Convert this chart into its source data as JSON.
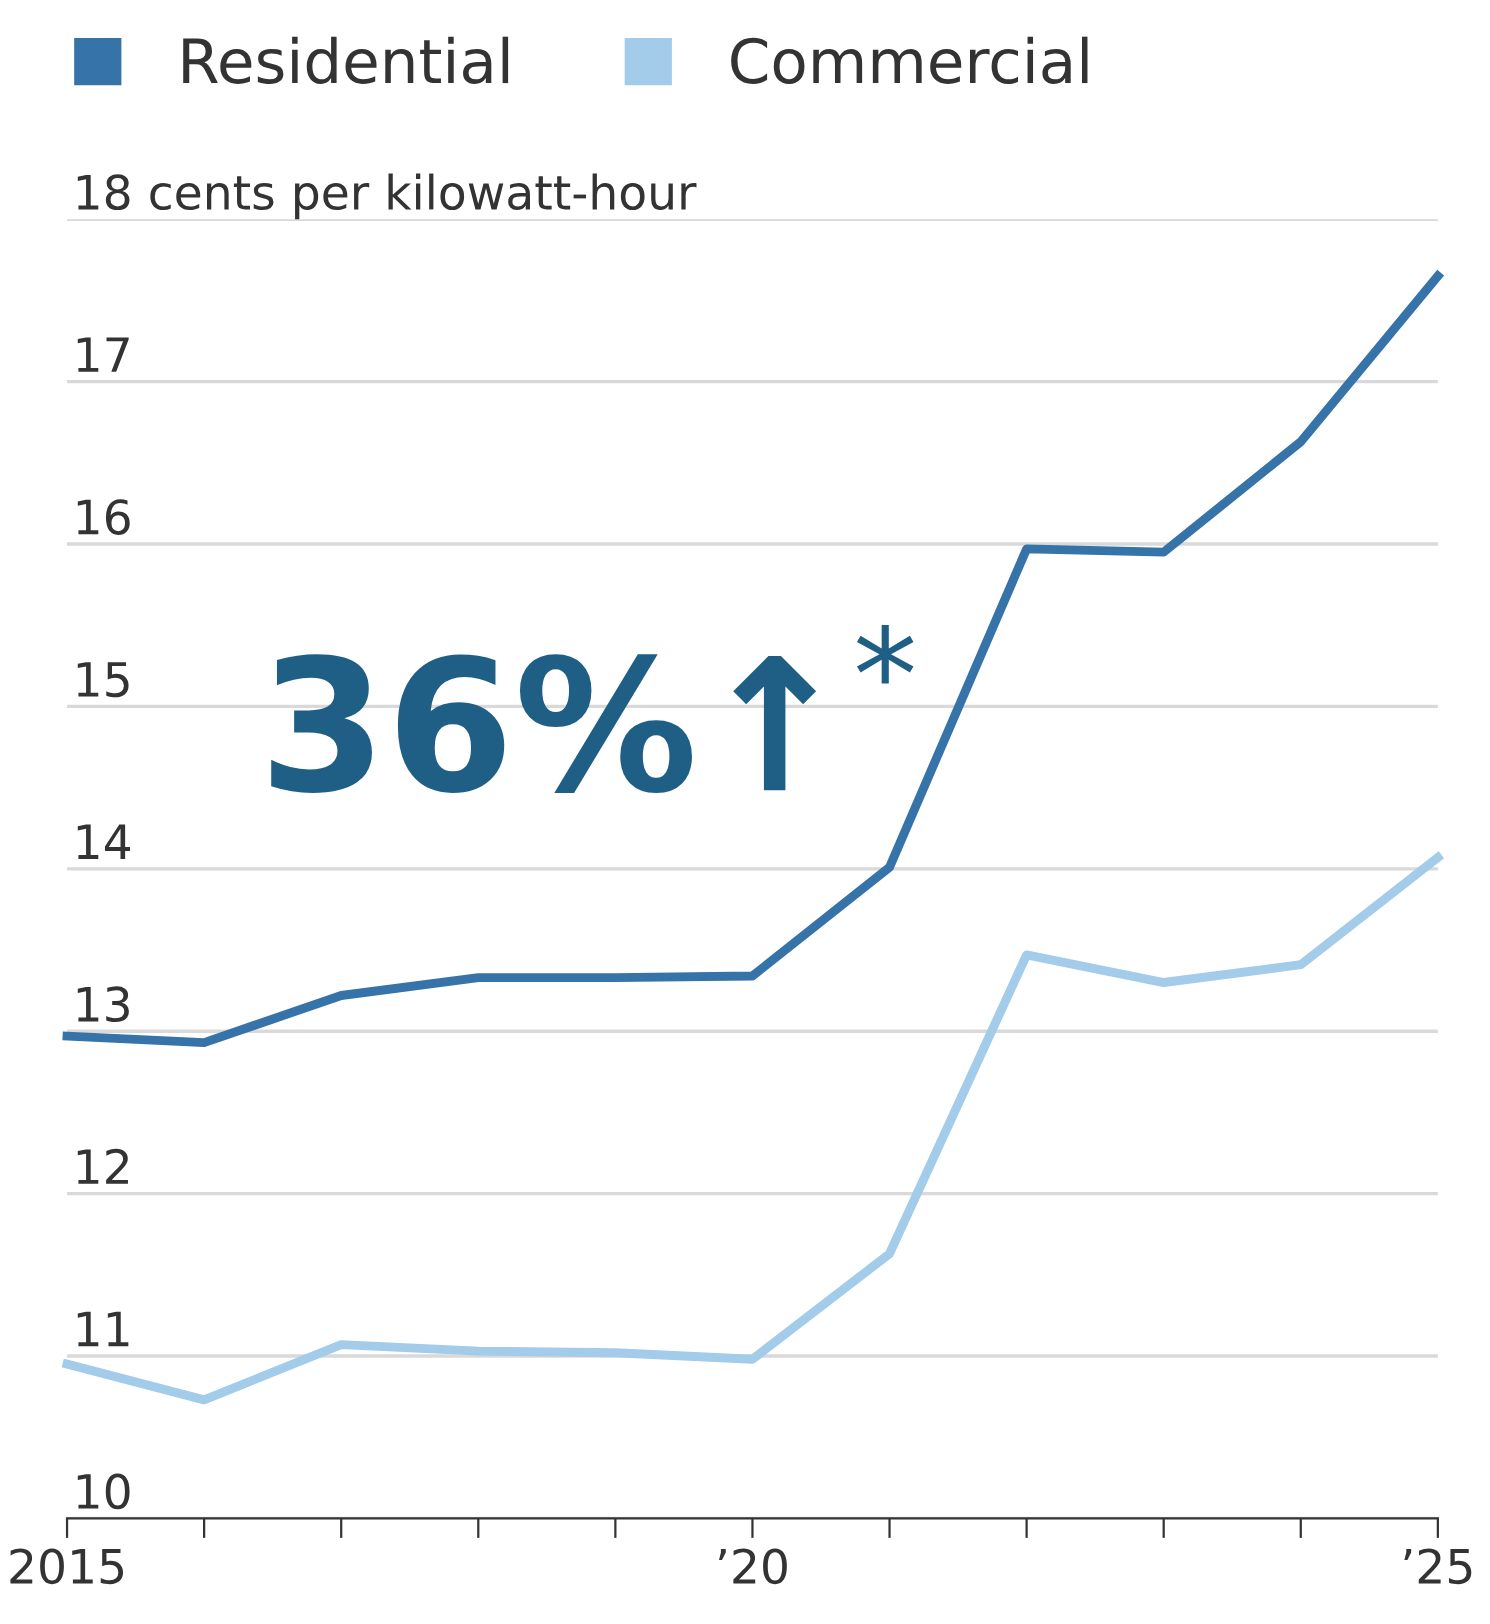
{
  "chart_data": {
    "type": "line",
    "x": [
      2015,
      2016,
      2017,
      2018,
      2019,
      2020,
      2021,
      2022,
      2023,
      2024,
      2025
    ],
    "series": [
      {
        "name": "Residential",
        "color": "#3673a8",
        "values": [
          12.97,
          12.93,
          13.22,
          13.33,
          13.33,
          13.34,
          14.01,
          15.97,
          15.95,
          16.63,
          17.65
        ]
      },
      {
        "name": "Commercial",
        "color": "#a3cbea",
        "values": [
          10.95,
          10.73,
          11.07,
          11.03,
          11.02,
          10.98,
          11.63,
          13.47,
          13.3,
          13.41,
          14.07
        ]
      }
    ],
    "xlim": [
      2015,
      2025
    ],
    "xticks": [
      2015,
      {
        "value": 2016,
        "label": null
      },
      {
        "value": 2017,
        "label": null
      },
      {
        "value": 2018,
        "label": null
      },
      {
        "value": 2019,
        "label": null
      },
      {
        "value": 2020,
        "label": "’20"
      },
      {
        "value": 2021,
        "label": null
      },
      {
        "value": 2022,
        "label": null
      },
      {
        "value": 2023,
        "label": null
      },
      {
        "value": 2024,
        "label": null
      },
      {
        "value": 2025,
        "label": "’25"
      }
    ],
    "ylim": [
      10,
      18
    ],
    "yticks": [
      10,
      11,
      12,
      13,
      14,
      15,
      16,
      17,
      {
        "value": 18,
        "label": "18 cents per kilowatt-hour"
      }
    ],
    "annotations": [
      "36%↑$^{*}$"
    ],
    "grid": "y",
    "legend": "top left",
    "marker": "none",
    "line_style": "solid"
  }
}
